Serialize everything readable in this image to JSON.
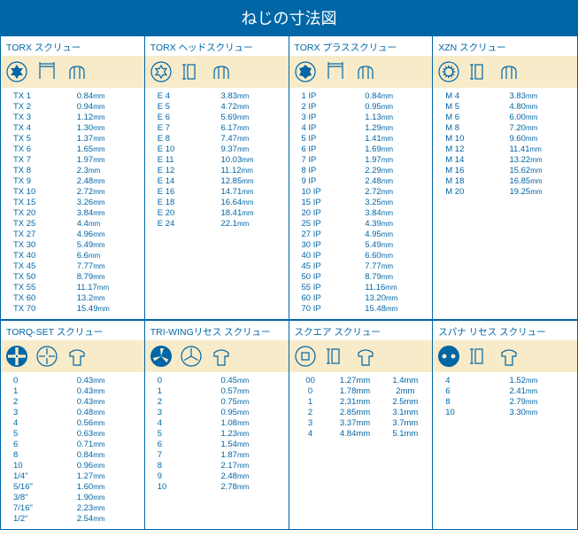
{
  "title": "ねじの寸法図",
  "colors": {
    "primary": "#0066a6",
    "icon_bg": "#f7ebc9",
    "white": "#ffffff"
  },
  "row1": [
    {
      "header": "TORX スクリュー",
      "icons": [
        "torx-star",
        "measure-top",
        "side-profile"
      ],
      "rows": [
        {
          "code": "TX 1",
          "val": "0.84",
          "unit": "mm"
        },
        {
          "code": "TX 2",
          "val": "0.94",
          "unit": "mm"
        },
        {
          "code": "TX 3",
          "val": "1.12",
          "unit": "mm"
        },
        {
          "code": "TX 4",
          "val": "1.30",
          "unit": "mm"
        },
        {
          "code": "TX 5",
          "val": "1.37",
          "unit": "mm"
        },
        {
          "code": "TX 6",
          "val": "1.65",
          "unit": "mm"
        },
        {
          "code": "TX 7",
          "val": "1.97",
          "unit": "mm"
        },
        {
          "code": "TX 8",
          "val": "2.3",
          "unit": "mm"
        },
        {
          "code": "TX 9",
          "val": "2.48",
          "unit": "mm"
        },
        {
          "code": "TX 10",
          "val": "2.72",
          "unit": "mm"
        },
        {
          "code": "TX 15",
          "val": "3.26",
          "unit": "mm"
        },
        {
          "code": "TX 20",
          "val": "3.84",
          "unit": "mm"
        },
        {
          "code": "TX 25",
          "val": "4.4",
          "unit": "mm"
        },
        {
          "code": "TX 27",
          "val": "4.96",
          "unit": "mm"
        },
        {
          "code": "TX 30",
          "val": "5.49",
          "unit": "mm"
        },
        {
          "code": "TX 40",
          "val": "6.6",
          "unit": "mm"
        },
        {
          "code": "TX 45",
          "val": "7.77",
          "unit": "mm"
        },
        {
          "code": "TX 50",
          "val": "8.79",
          "unit": "mm"
        },
        {
          "code": "TX 55",
          "val": "11.17",
          "unit": "mm"
        },
        {
          "code": "TX 60",
          "val": "13.2",
          "unit": "mm"
        },
        {
          "code": "TX 70",
          "val": "15.49",
          "unit": "mm"
        }
      ]
    },
    {
      "header": "TORX ヘッドスクリュー",
      "icons": [
        "torx-star-outline",
        "measure-side",
        "side-profile"
      ],
      "rows": [
        {
          "code": "E 4",
          "val": "3.83",
          "unit": "mm"
        },
        {
          "code": "E 5",
          "val": "4.72",
          "unit": "mm"
        },
        {
          "code": "E 6",
          "val": "5.69",
          "unit": "mm"
        },
        {
          "code": "E 7",
          "val": "6.17",
          "unit": "mm"
        },
        {
          "code": "E 8",
          "val": "7.47",
          "unit": "mm"
        },
        {
          "code": "E 10",
          "val": "9.37",
          "unit": "mm"
        },
        {
          "code": "E 11",
          "val": "10.03",
          "unit": "mm"
        },
        {
          "code": "E 12",
          "val": "11.12",
          "unit": "mm"
        },
        {
          "code": "E 14",
          "val": "12.85",
          "unit": "mm"
        },
        {
          "code": "E 16",
          "val": "14.71",
          "unit": "mm"
        },
        {
          "code": "E 18",
          "val": "16.64",
          "unit": "mm"
        },
        {
          "code": "E 20",
          "val": "18.41",
          "unit": "mm"
        },
        {
          "code": "E 24",
          "val": "22.1",
          "unit": "mm"
        }
      ]
    },
    {
      "header": "TORX プラススクリュー",
      "icons": [
        "torx-plus",
        "measure-top",
        "side-profile"
      ],
      "rows": [
        {
          "code": "1 IP",
          "val": "0.84",
          "unit": "mm"
        },
        {
          "code": "2 IP",
          "val": "0.95",
          "unit": "mm"
        },
        {
          "code": "3 IP",
          "val": "1.13",
          "unit": "mm"
        },
        {
          "code": "4 IP",
          "val": "1.29",
          "unit": "mm"
        },
        {
          "code": "5 IP",
          "val": "1.41",
          "unit": "mm"
        },
        {
          "code": "6 IP",
          "val": "1.69",
          "unit": "mm"
        },
        {
          "code": "7 IP",
          "val": "1.97",
          "unit": "mm"
        },
        {
          "code": "8 IP",
          "val": "2.29",
          "unit": "mm"
        },
        {
          "code": "9 IP",
          "val": "2.48",
          "unit": "mm"
        },
        {
          "code": "10 IP",
          "val": "2.72",
          "unit": "mm"
        },
        {
          "code": "15 IP",
          "val": "3.25",
          "unit": "mm"
        },
        {
          "code": "20 IP",
          "val": "3.84",
          "unit": "mm"
        },
        {
          "code": "25 IP",
          "val": "4.39",
          "unit": "mm"
        },
        {
          "code": "27 IP",
          "val": "4.95",
          "unit": "mm"
        },
        {
          "code": "30 IP",
          "val": "5.49",
          "unit": "mm"
        },
        {
          "code": "40 IP",
          "val": "6.60",
          "unit": "mm"
        },
        {
          "code": "45 IP",
          "val": "7.77",
          "unit": "mm"
        },
        {
          "code": "50 IP",
          "val": "8.79",
          "unit": "mm"
        },
        {
          "code": "55 IP",
          "val": "11.16",
          "unit": "mm"
        },
        {
          "code": "60 IP",
          "val": "13.20",
          "unit": "mm"
        },
        {
          "code": "70 IP",
          "val": "15.48",
          "unit": "mm"
        }
      ]
    },
    {
      "header": "XZN スクリュー",
      "icons": [
        "xzn-star",
        "measure-side",
        "side-profile"
      ],
      "rows": [
        {
          "code": "M 4",
          "val": "3.83",
          "unit": "mm"
        },
        {
          "code": "M 5",
          "val": "4.80",
          "unit": "mm"
        },
        {
          "code": "M 6",
          "val": "6.00",
          "unit": "mm"
        },
        {
          "code": "M 8",
          "val": "7.20",
          "unit": "mm"
        },
        {
          "code": "M 10",
          "val": "9.60",
          "unit": "mm"
        },
        {
          "code": "M 12",
          "val": "11.41",
          "unit": "mm"
        },
        {
          "code": "M 14",
          "val": "13.22",
          "unit": "mm"
        },
        {
          "code": "M 16",
          "val": "15.62",
          "unit": "mm"
        },
        {
          "code": "M 18",
          "val": "16.85",
          "unit": "mm"
        },
        {
          "code": "M 20",
          "val": "19.25",
          "unit": "mm"
        }
      ]
    }
  ],
  "row2": [
    {
      "header": "TORQ-SET スクリュー",
      "icons": [
        "torq-set",
        "torq-recess",
        "screw-side"
      ],
      "rows": [
        {
          "code": "0",
          "val": "0.43",
          "unit": "mm"
        },
        {
          "code": "1",
          "val": "0.43",
          "unit": "mm"
        },
        {
          "code": "2",
          "val": "0.43",
          "unit": "mm"
        },
        {
          "code": "3",
          "val": "0.48",
          "unit": "mm"
        },
        {
          "code": "4",
          "val": "0.56",
          "unit": "mm"
        },
        {
          "code": "5",
          "val": "0.63",
          "unit": "mm"
        },
        {
          "code": "6",
          "val": "0.71",
          "unit": "mm"
        },
        {
          "code": "8",
          "val": "0.84",
          "unit": "mm"
        },
        {
          "code": "10",
          "val": "0.96",
          "unit": "mm"
        },
        {
          "code": "1/4\"",
          "val": "1.27",
          "unit": "mm"
        },
        {
          "code": "5/16\"",
          "val": "1.60",
          "unit": "mm"
        },
        {
          "code": "3/8\"",
          "val": "1.90",
          "unit": "mm"
        },
        {
          "code": "7/16\"",
          "val": "2.23",
          "unit": "mm"
        },
        {
          "code": "1/2\"",
          "val": "2.54",
          "unit": "mm"
        }
      ]
    },
    {
      "header": "TRI-WINGリセス スクリュー",
      "icons": [
        "triwing",
        "triwing-recess",
        "screw-side"
      ],
      "rows": [
        {
          "code": "0",
          "val": "0.45",
          "unit": "mm"
        },
        {
          "code": "1",
          "val": "0.57",
          "unit": "mm"
        },
        {
          "code": "2",
          "val": "0.75",
          "unit": "mm"
        },
        {
          "code": "3",
          "val": "0.95",
          "unit": "mm"
        },
        {
          "code": "4",
          "val": "1.08",
          "unit": "mm"
        },
        {
          "code": "5",
          "val": "1.23",
          "unit": "mm"
        },
        {
          "code": "6",
          "val": "1.54",
          "unit": "mm"
        },
        {
          "code": "7",
          "val": "1.87",
          "unit": "mm"
        },
        {
          "code": "8",
          "val": "2.17",
          "unit": "mm"
        },
        {
          "code": "9",
          "val": "2.48",
          "unit": "mm"
        },
        {
          "code": "10",
          "val": "2.78",
          "unit": "mm"
        }
      ]
    },
    {
      "header": "スクエア スクリュー",
      "icons": [
        "square-drive",
        "measure-side",
        "screw-side"
      ],
      "rows3": [
        {
          "c1": "00",
          "c2": "1.27mm",
          "c3": "1.4mm"
        },
        {
          "c1": "0",
          "c2": "1.78mm",
          "c3": "2mm"
        },
        {
          "c1": "1",
          "c2": "2.31mm",
          "c3": "2.5mm"
        },
        {
          "c1": "2",
          "c2": "2.85mm",
          "c3": "3.1mm"
        },
        {
          "c1": "3",
          "c2": "3.37mm",
          "c3": "3.7mm"
        },
        {
          "c1": "4",
          "c2": "4.84mm",
          "c3": "5.1mm"
        }
      ]
    },
    {
      "header": "スパナ リセス スクリュー",
      "icons": [
        "spanner",
        "measure-side",
        "screw-side"
      ],
      "rows": [
        {
          "code": "4",
          "val": "1.52",
          "unit": "mm"
        },
        {
          "code": "6",
          "val": "2.41",
          "unit": "mm"
        },
        {
          "code": "8",
          "val": "2.79",
          "unit": "mm"
        },
        {
          "code": "10",
          "val": "3.30",
          "unit": "mm"
        }
      ]
    }
  ]
}
